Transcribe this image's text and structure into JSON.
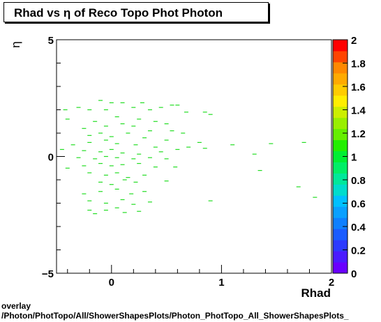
{
  "chart_data": {
    "type": "scatter",
    "title": "Rhad vs  η of Reco Topo Phot Photon",
    "xlabel": "Rhad",
    "ylabel": "η",
    "xlim": [
      -0.5,
      2.0
    ],
    "ylim": [
      -5,
      5
    ],
    "x_ticks": [
      "0",
      "1",
      "2"
    ],
    "y_ticks": [
      "5",
      "0",
      "−5"
    ],
    "z_ticks": [
      "0",
      "0.2",
      "0.4",
      "0.6",
      "0.8",
      "1",
      "1.2",
      "1.4",
      "1.6",
      "1.8",
      "2"
    ],
    "zlim": [
      0,
      2
    ],
    "marker_color": "#22dd22",
    "palette": [
      "#6a00ff",
      "#4a1cff",
      "#2d3bff",
      "#1a5cff",
      "#0f80ff",
      "#0aa0ff",
      "#00c0ff",
      "#00dccc",
      "#00e89a",
      "#00ee66",
      "#00ee33",
      "#22ee00",
      "#66ee00",
      "#99ee00",
      "#ccee00",
      "#ffee00",
      "#ffcc00",
      "#ffaa00",
      "#ff8800",
      "#ff4400",
      "#ff0000"
    ],
    "points": [
      [
        0.55,
        2.2
      ],
      [
        0.0,
        2.3
      ],
      [
        0.1,
        2.3
      ],
      [
        -0.1,
        2.4
      ],
      [
        0.28,
        2.3
      ],
      [
        -0.42,
        2.0
      ],
      [
        -0.3,
        2.1
      ],
      [
        -0.2,
        2.0
      ],
      [
        0.2,
        2.1
      ],
      [
        0.35,
        2.0
      ],
      [
        0.45,
        2.1
      ],
      [
        0.6,
        2.2
      ],
      [
        0.68,
        1.9
      ],
      [
        0.85,
        1.9
      ],
      [
        0.9,
        1.8
      ],
      [
        -0.05,
        2.0
      ],
      [
        -0.4,
        1.6
      ],
      [
        -0.15,
        1.5
      ],
      [
        0.05,
        1.7
      ],
      [
        0.25,
        1.6
      ],
      [
        0.4,
        1.5
      ],
      [
        0.5,
        1.4
      ],
      [
        -0.25,
        1.2
      ],
      [
        -0.05,
        1.3
      ],
      [
        0.1,
        1.4
      ],
      [
        0.2,
        1.3
      ],
      [
        0.35,
        1.1
      ],
      [
        0.55,
        1.1
      ],
      [
        0.65,
        1.0
      ],
      [
        -0.2,
        0.9
      ],
      [
        -0.1,
        1.0
      ],
      [
        0.0,
        0.85
      ],
      [
        0.15,
        1.0
      ],
      [
        0.3,
        0.8
      ],
      [
        0.5,
        0.7
      ],
      [
        0.8,
        0.6
      ],
      [
        -0.35,
        0.5
      ],
      [
        -0.2,
        0.6
      ],
      [
        -0.05,
        0.7
      ],
      [
        0.05,
        0.55
      ],
      [
        0.22,
        0.5
      ],
      [
        0.4,
        0.4
      ],
      [
        0.7,
        0.4
      ],
      [
        1.1,
        0.5
      ],
      [
        1.45,
        0.55
      ],
      [
        1.75,
        0.6
      ],
      [
        -0.45,
        0.3
      ],
      [
        -0.25,
        0.25
      ],
      [
        -0.1,
        0.2
      ],
      [
        0.0,
        0.3
      ],
      [
        0.1,
        0.15
      ],
      [
        0.25,
        0.1
      ],
      [
        0.45,
        0.2
      ],
      [
        0.6,
        0.3
      ],
      [
        0.85,
        0.35
      ],
      [
        1.3,
        0.1
      ],
      [
        -0.3,
        -0.05
      ],
      [
        -0.15,
        -0.1
      ],
      [
        -0.05,
        0.0
      ],
      [
        0.05,
        -0.05
      ],
      [
        0.2,
        -0.1
      ],
      [
        0.35,
        -0.05
      ],
      [
        0.5,
        -0.1
      ],
      [
        -0.4,
        -0.5
      ],
      [
        -0.25,
        -0.4
      ],
      [
        -0.1,
        -0.3
      ],
      [
        0.0,
        -0.4
      ],
      [
        0.1,
        -0.35
      ],
      [
        0.25,
        -0.3
      ],
      [
        0.4,
        -0.45
      ],
      [
        0.58,
        -0.45
      ],
      [
        -0.2,
        -0.7
      ],
      [
        -0.05,
        -0.8
      ],
      [
        0.05,
        -0.7
      ],
      [
        0.15,
        -0.9
      ],
      [
        0.3,
        -0.8
      ],
      [
        1.35,
        -0.6
      ],
      [
        -0.1,
        -1.1
      ],
      [
        0.0,
        -1.2
      ],
      [
        0.12,
        -1.0
      ],
      [
        0.22,
        -1.1
      ],
      [
        0.5,
        -1.05
      ],
      [
        -0.25,
        -1.6
      ],
      [
        -0.1,
        -1.5
      ],
      [
        0.05,
        -1.4
      ],
      [
        0.18,
        -1.6
      ],
      [
        0.3,
        -1.5
      ],
      [
        1.7,
        -1.3
      ],
      [
        -0.2,
        -1.9
      ],
      [
        -0.05,
        -2.0
      ],
      [
        0.1,
        -1.85
      ],
      [
        0.2,
        -2.05
      ],
      [
        0.35,
        -1.95
      ],
      [
        0.9,
        -1.9
      ],
      [
        1.85,
        -1.75
      ],
      [
        -0.2,
        -2.3
      ],
      [
        -0.05,
        -2.3
      ],
      [
        0.12,
        -2.4
      ],
      [
        0.25,
        -2.35
      ],
      [
        0.05,
        -2.2
      ],
      [
        -0.15,
        -2.45
      ]
    ]
  },
  "footer": {
    "line1": "overlay",
    "line2": "/Photon/PhotTopo/All/ShowerShapesPlots/Photon_PhotTopo_All_ShowerShapesPlots_"
  }
}
